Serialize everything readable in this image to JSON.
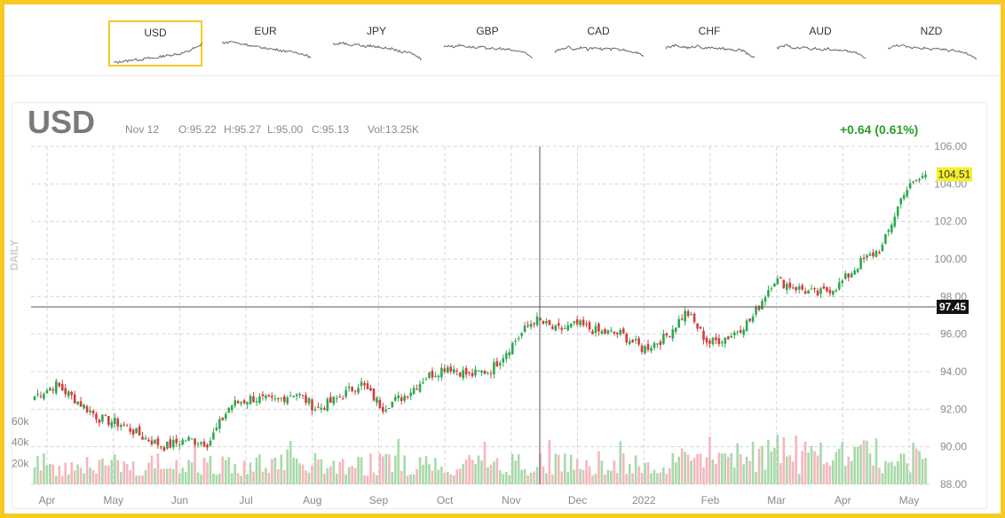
{
  "tabs": [
    {
      "label": "USD",
      "active": true,
      "spark": [
        3,
        3,
        4,
        4,
        5,
        5,
        5,
        6,
        6,
        6,
        7,
        8,
        8,
        9,
        9,
        10,
        11,
        13,
        14,
        17
      ]
    },
    {
      "label": "EUR",
      "active": false,
      "spark": [
        16,
        16,
        17,
        16,
        15,
        15,
        14,
        13,
        13,
        12,
        12,
        11,
        11,
        10,
        10,
        9,
        9,
        8,
        7,
        5
      ]
    },
    {
      "label": "JPY",
      "active": false,
      "spark": [
        15,
        15,
        16,
        15,
        14,
        15,
        14,
        13,
        14,
        13,
        13,
        12,
        12,
        11,
        10,
        9,
        9,
        8,
        6,
        4
      ]
    },
    {
      "label": "GBP",
      "active": false,
      "spark": [
        13,
        14,
        13,
        14,
        14,
        13,
        13,
        12,
        13,
        12,
        12,
        11,
        12,
        11,
        11,
        10,
        10,
        9,
        7,
        5
      ]
    },
    {
      "label": "CAD",
      "active": false,
      "spark": [
        9,
        11,
        12,
        13,
        11,
        12,
        13,
        11,
        12,
        13,
        11,
        12,
        11,
        12,
        10,
        11,
        10,
        9,
        8,
        6
      ]
    },
    {
      "label": "CHF",
      "active": false,
      "spark": [
        12,
        13,
        14,
        13,
        13,
        12,
        13,
        14,
        12,
        12,
        13,
        11,
        12,
        11,
        11,
        10,
        11,
        9,
        7,
        5
      ]
    },
    {
      "label": "AUD",
      "active": false,
      "spark": [
        12,
        13,
        14,
        13,
        12,
        12,
        13,
        11,
        12,
        11,
        11,
        12,
        10,
        11,
        10,
        10,
        9,
        9,
        7,
        5
      ]
    },
    {
      "label": "NZD",
      "active": false,
      "spark": [
        12,
        13,
        14,
        14,
        13,
        12,
        13,
        12,
        12,
        11,
        12,
        11,
        11,
        10,
        11,
        10,
        9,
        8,
        6,
        4
      ]
    }
  ],
  "header": {
    "symbol": "USD",
    "date": "Nov 12",
    "open": "O:95.22",
    "high": "H:95.27",
    "low": "L:95.00",
    "close": "C:95.13",
    "volume": "Vol:13.25K",
    "change": "+0.64 (0.61%)",
    "period": "DAILY"
  },
  "colors": {
    "up": "#2fa84f",
    "down": "#d53c3c",
    "vol_up": "#a9d9a9",
    "vol_down": "#f4b7bd",
    "grid": "#d7d7d7",
    "last_price_bg": "#f3f02e",
    "crosshair_bg": "#111111",
    "accent": "#f6c923",
    "change_text": "#2a9d2a"
  },
  "chart_data": {
    "type": "candlestick",
    "y_ticks": [
      "106.00",
      "104.00",
      "102.00",
      "100.00",
      "98.00",
      "96.00",
      "94.00",
      "92.00",
      "90.00",
      "88.00"
    ],
    "ylim": [
      88,
      106
    ],
    "x_labels": [
      "Apr",
      "May",
      "Jun",
      "Jul",
      "Aug",
      "Sep",
      "Oct",
      "Nov",
      "Dec",
      "2022",
      "Feb",
      "Mar",
      "Apr",
      "May"
    ],
    "volume_ticks": [
      "60k",
      "40k",
      "20k"
    ],
    "volume_max": 60,
    "last_price": "104.51",
    "crosshair_price": "97.45",
    "crosshair_date": "Nov 12",
    "close_path": [
      {
        "month": "Apr",
        "close": 92.7
      },
      {
        "month": "Apr",
        "close": 93.3
      },
      {
        "month": "Apr",
        "close": 92.4
      },
      {
        "month": "May",
        "close": 91.5
      },
      {
        "month": "May",
        "close": 91.2
      },
      {
        "month": "May",
        "close": 90.5
      },
      {
        "month": "Jun",
        "close": 90.0
      },
      {
        "month": "Jun",
        "close": 90.4
      },
      {
        "month": "Jun",
        "close": 90.2
      },
      {
        "month": "Jul",
        "close": 92.2
      },
      {
        "month": "Jul",
        "close": 92.6
      },
      {
        "month": "Jul",
        "close": 92.4
      },
      {
        "month": "Aug",
        "close": 92.9
      },
      {
        "month": "Aug",
        "close": 92.0
      },
      {
        "month": "Aug",
        "close": 92.6
      },
      {
        "month": "Sep",
        "close": 93.4
      },
      {
        "month": "Sep",
        "close": 92.1
      },
      {
        "month": "Sep",
        "close": 92.7
      },
      {
        "month": "Oct",
        "close": 93.7
      },
      {
        "month": "Oct",
        "close": 94.3
      },
      {
        "month": "Oct",
        "close": 93.8
      },
      {
        "month": "Nov",
        "close": 94.1
      },
      {
        "month": "Nov",
        "close": 95.5
      },
      {
        "month": "Nov",
        "close": 96.8
      },
      {
        "month": "Dec",
        "close": 96.2
      },
      {
        "month": "Dec",
        "close": 96.5
      },
      {
        "month": "Dec",
        "close": 96.1
      },
      {
        "month": "2022",
        "close": 96.0
      },
      {
        "month": "2022",
        "close": 95.2
      },
      {
        "month": "2022",
        "close": 95.8
      },
      {
        "month": "Feb",
        "close": 97.2
      },
      {
        "month": "Feb",
        "close": 95.5
      },
      {
        "month": "Feb",
        "close": 95.9
      },
      {
        "month": "Mar",
        "close": 96.8
      },
      {
        "month": "Mar",
        "close": 98.9
      },
      {
        "month": "Mar",
        "close": 98.5
      },
      {
        "month": "Apr",
        "close": 98.1
      },
      {
        "month": "Apr",
        "close": 98.6
      },
      {
        "month": "Apr",
        "close": 99.8
      },
      {
        "month": "May",
        "close": 100.6
      },
      {
        "month": "May",
        "close": 103.6
      },
      {
        "month": "May",
        "close": 104.5
      }
    ],
    "candle_count": 290
  }
}
